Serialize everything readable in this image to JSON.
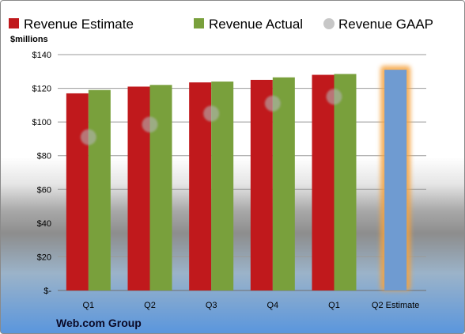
{
  "chart_data": {
    "type": "bar",
    "unit_label": "$millions",
    "categories": [
      "Q1",
      "Q2",
      "Q3",
      "Q4",
      "Q1",
      "Q2 Estimate"
    ],
    "series": [
      {
        "name": "Revenue Estimate",
        "kind": "bar",
        "color": "#c0191c",
        "values": [
          117,
          121,
          123.5,
          125,
          128,
          null
        ]
      },
      {
        "name": "Revenue Actual",
        "kind": "bar",
        "color": "#79a03c",
        "values": [
          119,
          122,
          124,
          126.5,
          128.5,
          null
        ]
      },
      {
        "name": "Revenue GAAP",
        "kind": "marker",
        "color": "#b4b4b4",
        "values": [
          91,
          98.5,
          105,
          111,
          115,
          null
        ]
      }
    ],
    "highlight": {
      "category_index": 5,
      "value": 131,
      "color": "#6f9bd1",
      "glow_color": "#f5a23c"
    },
    "ylim": [
      0,
      140
    ],
    "yticks": [
      0,
      20,
      40,
      60,
      80,
      100,
      120,
      140
    ],
    "ytick_labels": [
      "$-",
      "$20",
      "$40",
      "$60",
      "$80",
      "$100",
      "$120",
      "$140"
    ],
    "grid": true,
    "legend_position": "top"
  },
  "brand": "Web.com Group"
}
